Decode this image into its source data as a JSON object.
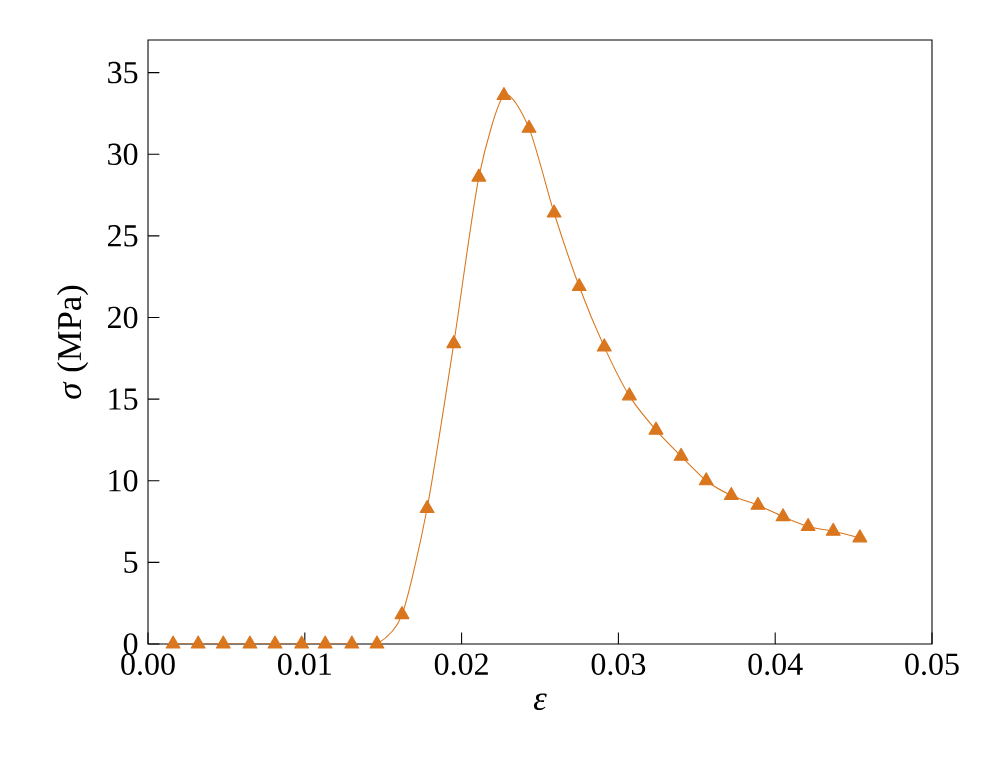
{
  "chart_data": {
    "type": "line",
    "xlabel": "ε",
    "ylabel": "*σ* (MPa)",
    "x": [
      0.0016,
      0.0032,
      0.0048,
      0.0065,
      0.0081,
      0.0098,
      0.0113,
      0.013,
      0.0146,
      0.0162,
      0.0178,
      0.0195,
      0.0211,
      0.0227,
      0.0243,
      0.0259,
      0.0275,
      0.0291,
      0.0307,
      0.0324,
      0.034,
      0.0356,
      0.0372,
      0.0389,
      0.0405,
      0.0421,
      0.0437,
      0.0454
    ],
    "series": [
      {
        "color": "#d9761e",
        "values": [
          0,
          0,
          0,
          0,
          0,
          0,
          0,
          0,
          0,
          1.8,
          8.3,
          18.4,
          28.6,
          33.6,
          31.6,
          26.4,
          21.9,
          18.2,
          15.2,
          13.1,
          11.5,
          10.0,
          9.1,
          8.5,
          7.8,
          7.2,
          6.9,
          6.5
        ]
      }
    ],
    "xlim": [
      0,
      0.05
    ],
    "ylim": [
      0,
      37
    ],
    "xticks": [
      {
        "value": 0,
        "label": "0.00"
      },
      {
        "value": 0.01,
        "label": "0.01"
      },
      {
        "value": 0.02,
        "label": "0.02"
      },
      {
        "value": 0.03,
        "label": "0.03"
      },
      {
        "value": 0.04,
        "label": "0.04"
      },
      {
        "value": 0.05,
        "label": "0.05"
      }
    ],
    "yticks": [
      0,
      5,
      10,
      15,
      20,
      25,
      30,
      35
    ],
    "marker": "triangle",
    "line_style": "solid",
    "grid": false,
    "legend": false
  }
}
